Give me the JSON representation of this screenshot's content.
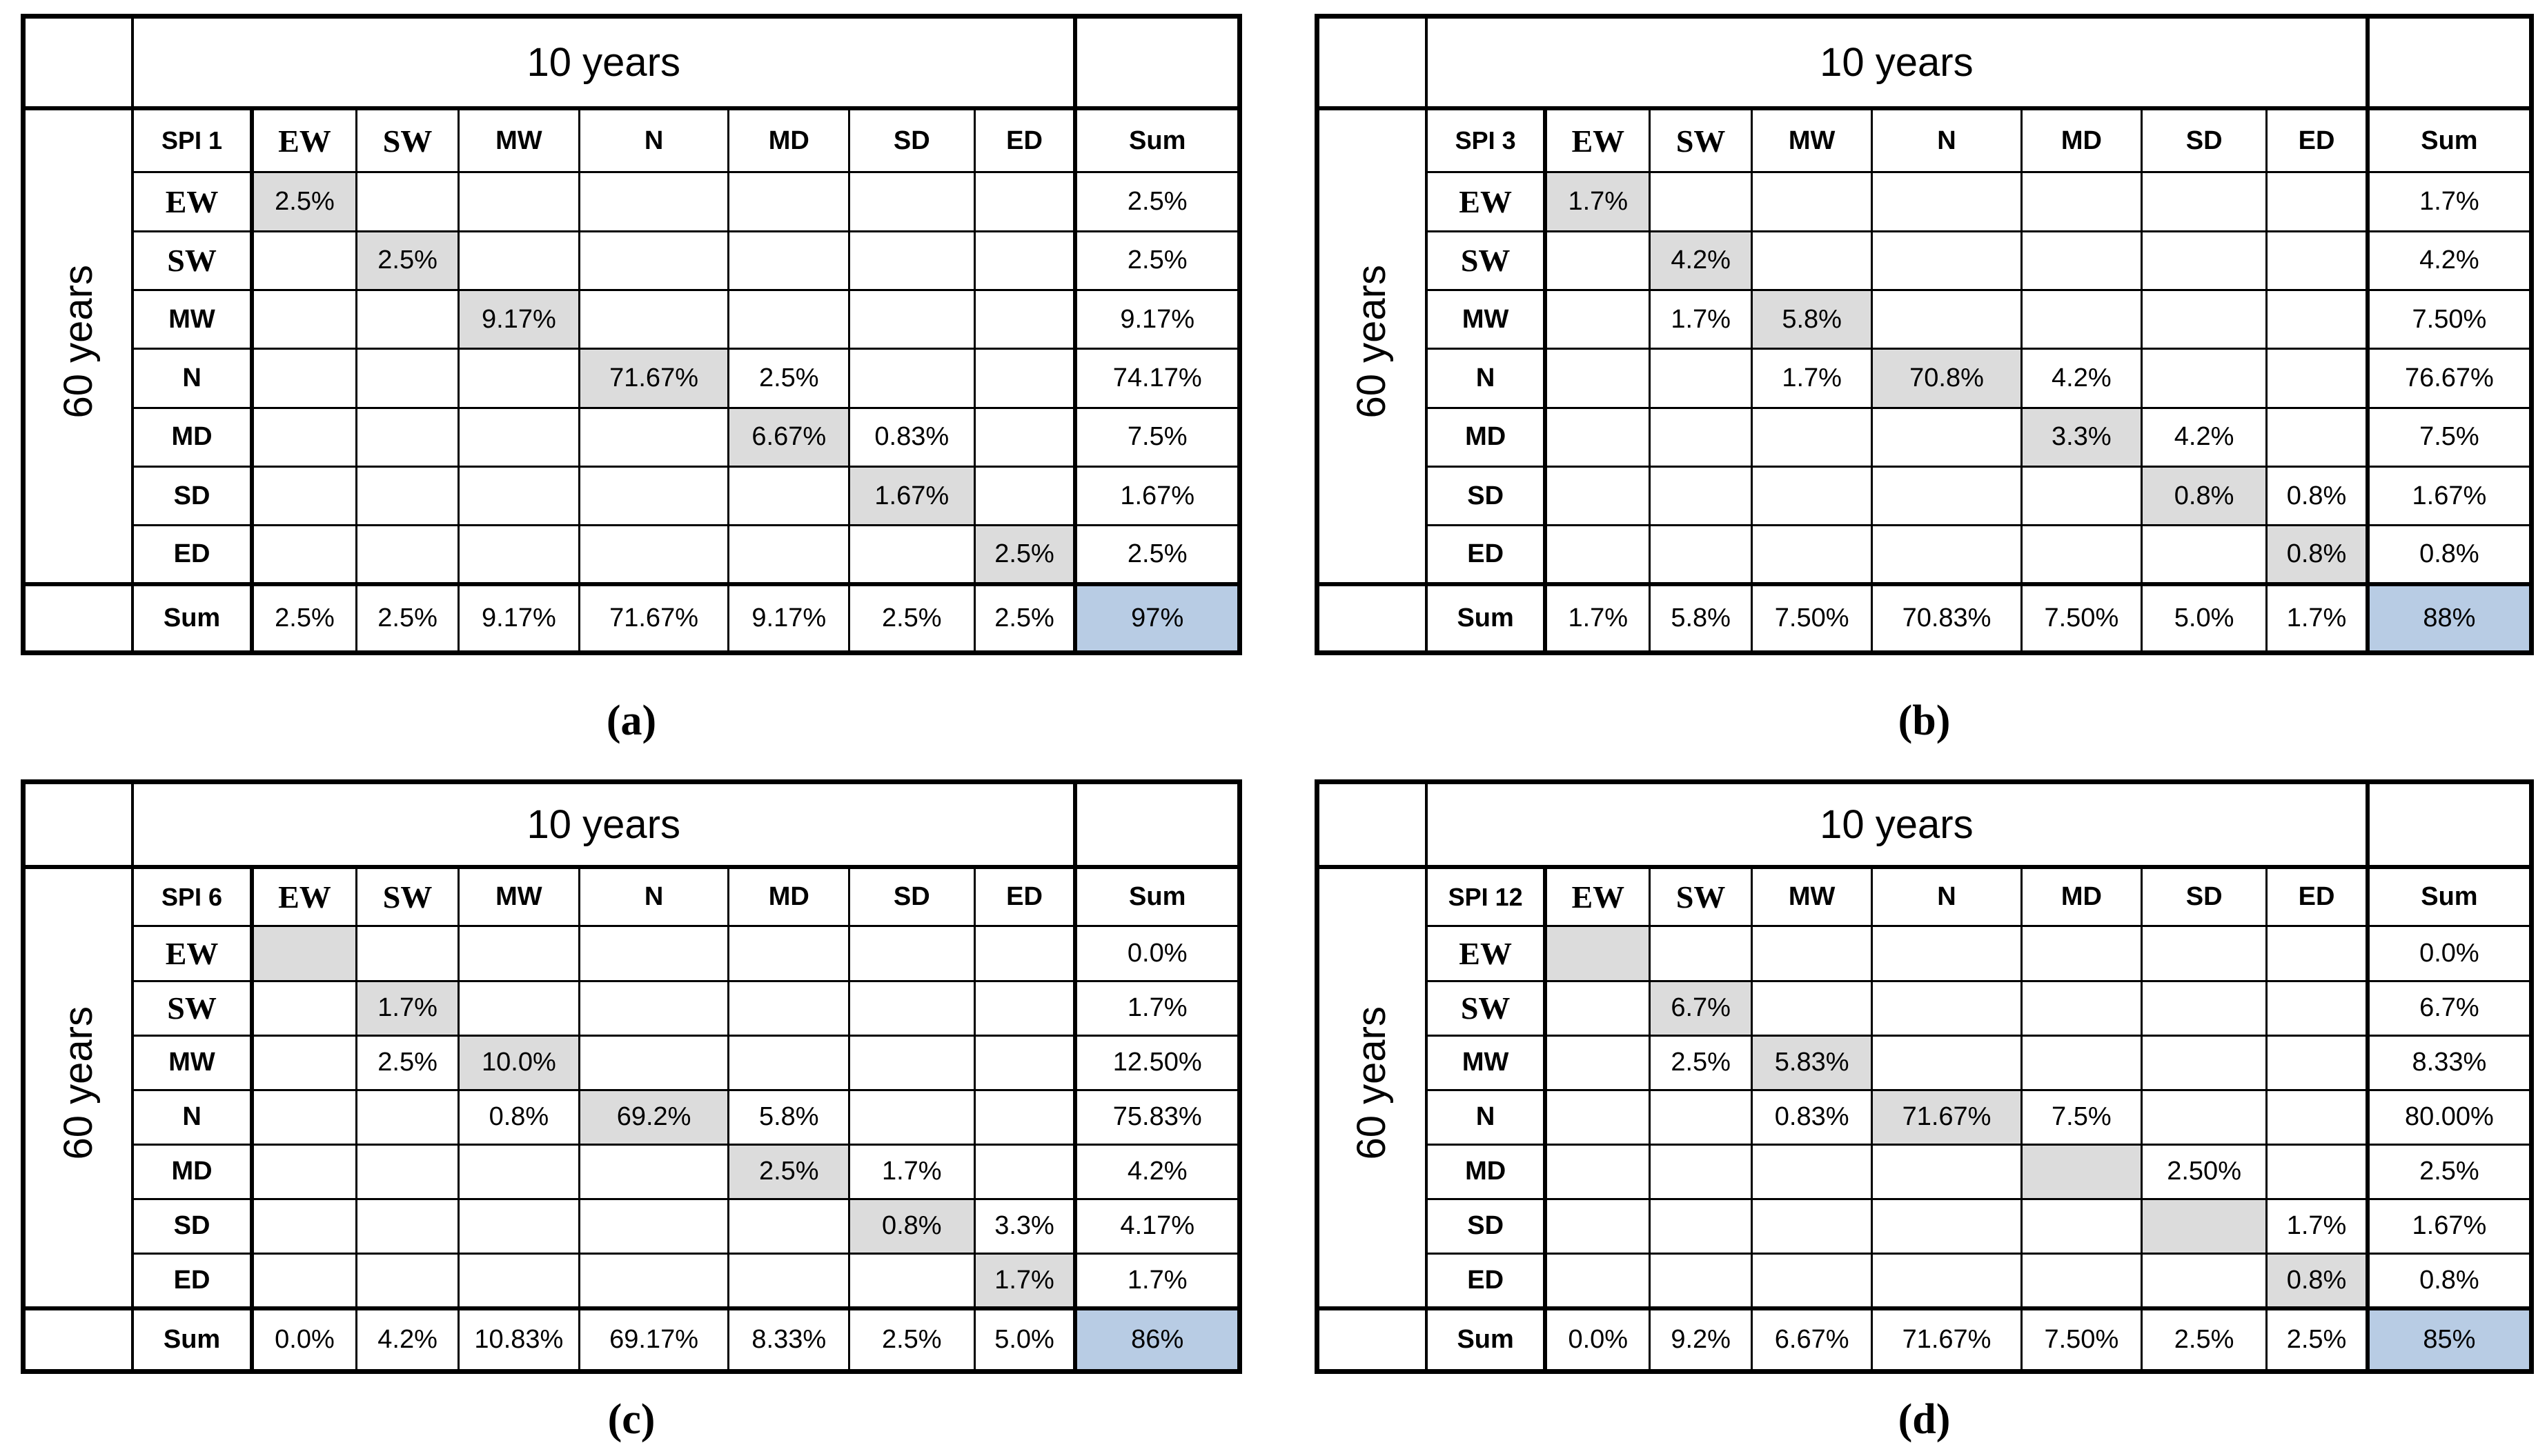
{
  "figure": {
    "col_axis_label": "10 years",
    "row_axis_label": "60 years",
    "categories": [
      "EW",
      "SW",
      "MW",
      "N",
      "MD",
      "SD",
      "ED"
    ],
    "sum_label": "Sum",
    "colors": {
      "diagonal_fill": "#dcdcdc",
      "total_fill": "#b8cce4",
      "border": "#000000"
    },
    "tables": [
      {
        "id": "a",
        "caption": "(a)",
        "spi_label": "SPI 1",
        "matrix": [
          [
            "2.5%",
            "",
            "",
            "",
            "",
            "",
            ""
          ],
          [
            "",
            "2.5%",
            "",
            "",
            "",
            "",
            ""
          ],
          [
            "",
            "",
            "9.17%",
            "",
            "",
            "",
            ""
          ],
          [
            "",
            "",
            "",
            "71.67%",
            "2.5%",
            "",
            ""
          ],
          [
            "",
            "",
            "",
            "",
            "6.67%",
            "0.83%",
            ""
          ],
          [
            "",
            "",
            "",
            "",
            "",
            "1.67%",
            ""
          ],
          [
            "",
            "",
            "",
            "",
            "",
            "",
            "2.5%"
          ]
        ],
        "row_sums": [
          "2.5%",
          "2.5%",
          "9.17%",
          "74.17%",
          "7.5%",
          "1.67%",
          "2.5%"
        ],
        "col_sums": [
          "2.5%",
          "2.5%",
          "9.17%",
          "71.67%",
          "9.17%",
          "2.5%",
          "2.5%"
        ],
        "total": "97%"
      },
      {
        "id": "b",
        "caption": "(b)",
        "spi_label": "SPI 3",
        "matrix": [
          [
            "1.7%",
            "",
            "",
            "",
            "",
            "",
            ""
          ],
          [
            "",
            "4.2%",
            "",
            "",
            "",
            "",
            ""
          ],
          [
            "",
            "1.7%",
            "5.8%",
            "",
            "",
            "",
            ""
          ],
          [
            "",
            "",
            "1.7%",
            "70.8%",
            "4.2%",
            "",
            ""
          ],
          [
            "",
            "",
            "",
            "",
            "3.3%",
            "4.2%",
            ""
          ],
          [
            "",
            "",
            "",
            "",
            "",
            "0.8%",
            "0.8%"
          ],
          [
            "",
            "",
            "",
            "",
            "",
            "",
            "0.8%"
          ]
        ],
        "row_sums": [
          "1.7%",
          "4.2%",
          "7.50%",
          "76.67%",
          "7.5%",
          "1.67%",
          "0.8%"
        ],
        "col_sums": [
          "1.7%",
          "5.8%",
          "7.50%",
          "70.83%",
          "7.50%",
          "5.0%",
          "1.7%"
        ],
        "total": "88%"
      },
      {
        "id": "c",
        "caption": "(c)",
        "spi_label": "SPI 6",
        "matrix": [
          [
            "",
            "",
            "",
            "",
            "",
            "",
            ""
          ],
          [
            "",
            "1.7%",
            "",
            "",
            "",
            "",
            ""
          ],
          [
            "",
            "2.5%",
            "10.0%",
            "",
            "",
            "",
            ""
          ],
          [
            "",
            "",
            "0.8%",
            "69.2%",
            "5.8%",
            "",
            ""
          ],
          [
            "",
            "",
            "",
            "",
            "2.5%",
            "1.7%",
            ""
          ],
          [
            "",
            "",
            "",
            "",
            "",
            "0.8%",
            "3.3%"
          ],
          [
            "",
            "",
            "",
            "",
            "",
            "",
            "1.7%"
          ]
        ],
        "row_sums": [
          "0.0%",
          "1.7%",
          "12.50%",
          "75.83%",
          "4.2%",
          "4.17%",
          "1.7%"
        ],
        "col_sums": [
          "0.0%",
          "4.2%",
          "10.83%",
          "69.17%",
          "8.33%",
          "2.5%",
          "5.0%"
        ],
        "total": "86%"
      },
      {
        "id": "d",
        "caption": "(d)",
        "spi_label": "SPI 12",
        "matrix": [
          [
            "",
            "",
            "",
            "",
            "",
            "",
            ""
          ],
          [
            "",
            "6.7%",
            "",
            "",
            "",
            "",
            ""
          ],
          [
            "",
            "2.5%",
            "5.83%",
            "",
            "",
            "",
            ""
          ],
          [
            "",
            "",
            "0.83%",
            "71.67%",
            "7.5%",
            "",
            ""
          ],
          [
            "",
            "",
            "",
            "",
            "",
            "2.50%",
            ""
          ],
          [
            "",
            "",
            "",
            "",
            "",
            "",
            "1.7%"
          ],
          [
            "",
            "",
            "",
            "",
            "",
            "",
            "0.8%"
          ]
        ],
        "row_sums": [
          "0.0%",
          "6.7%",
          "8.33%",
          "80.00%",
          "2.5%",
          "1.67%",
          "0.8%"
        ],
        "col_sums": [
          "0.0%",
          "9.2%",
          "6.67%",
          "71.67%",
          "7.50%",
          "2.5%",
          "2.5%"
        ],
        "total": "85%"
      }
    ]
  }
}
